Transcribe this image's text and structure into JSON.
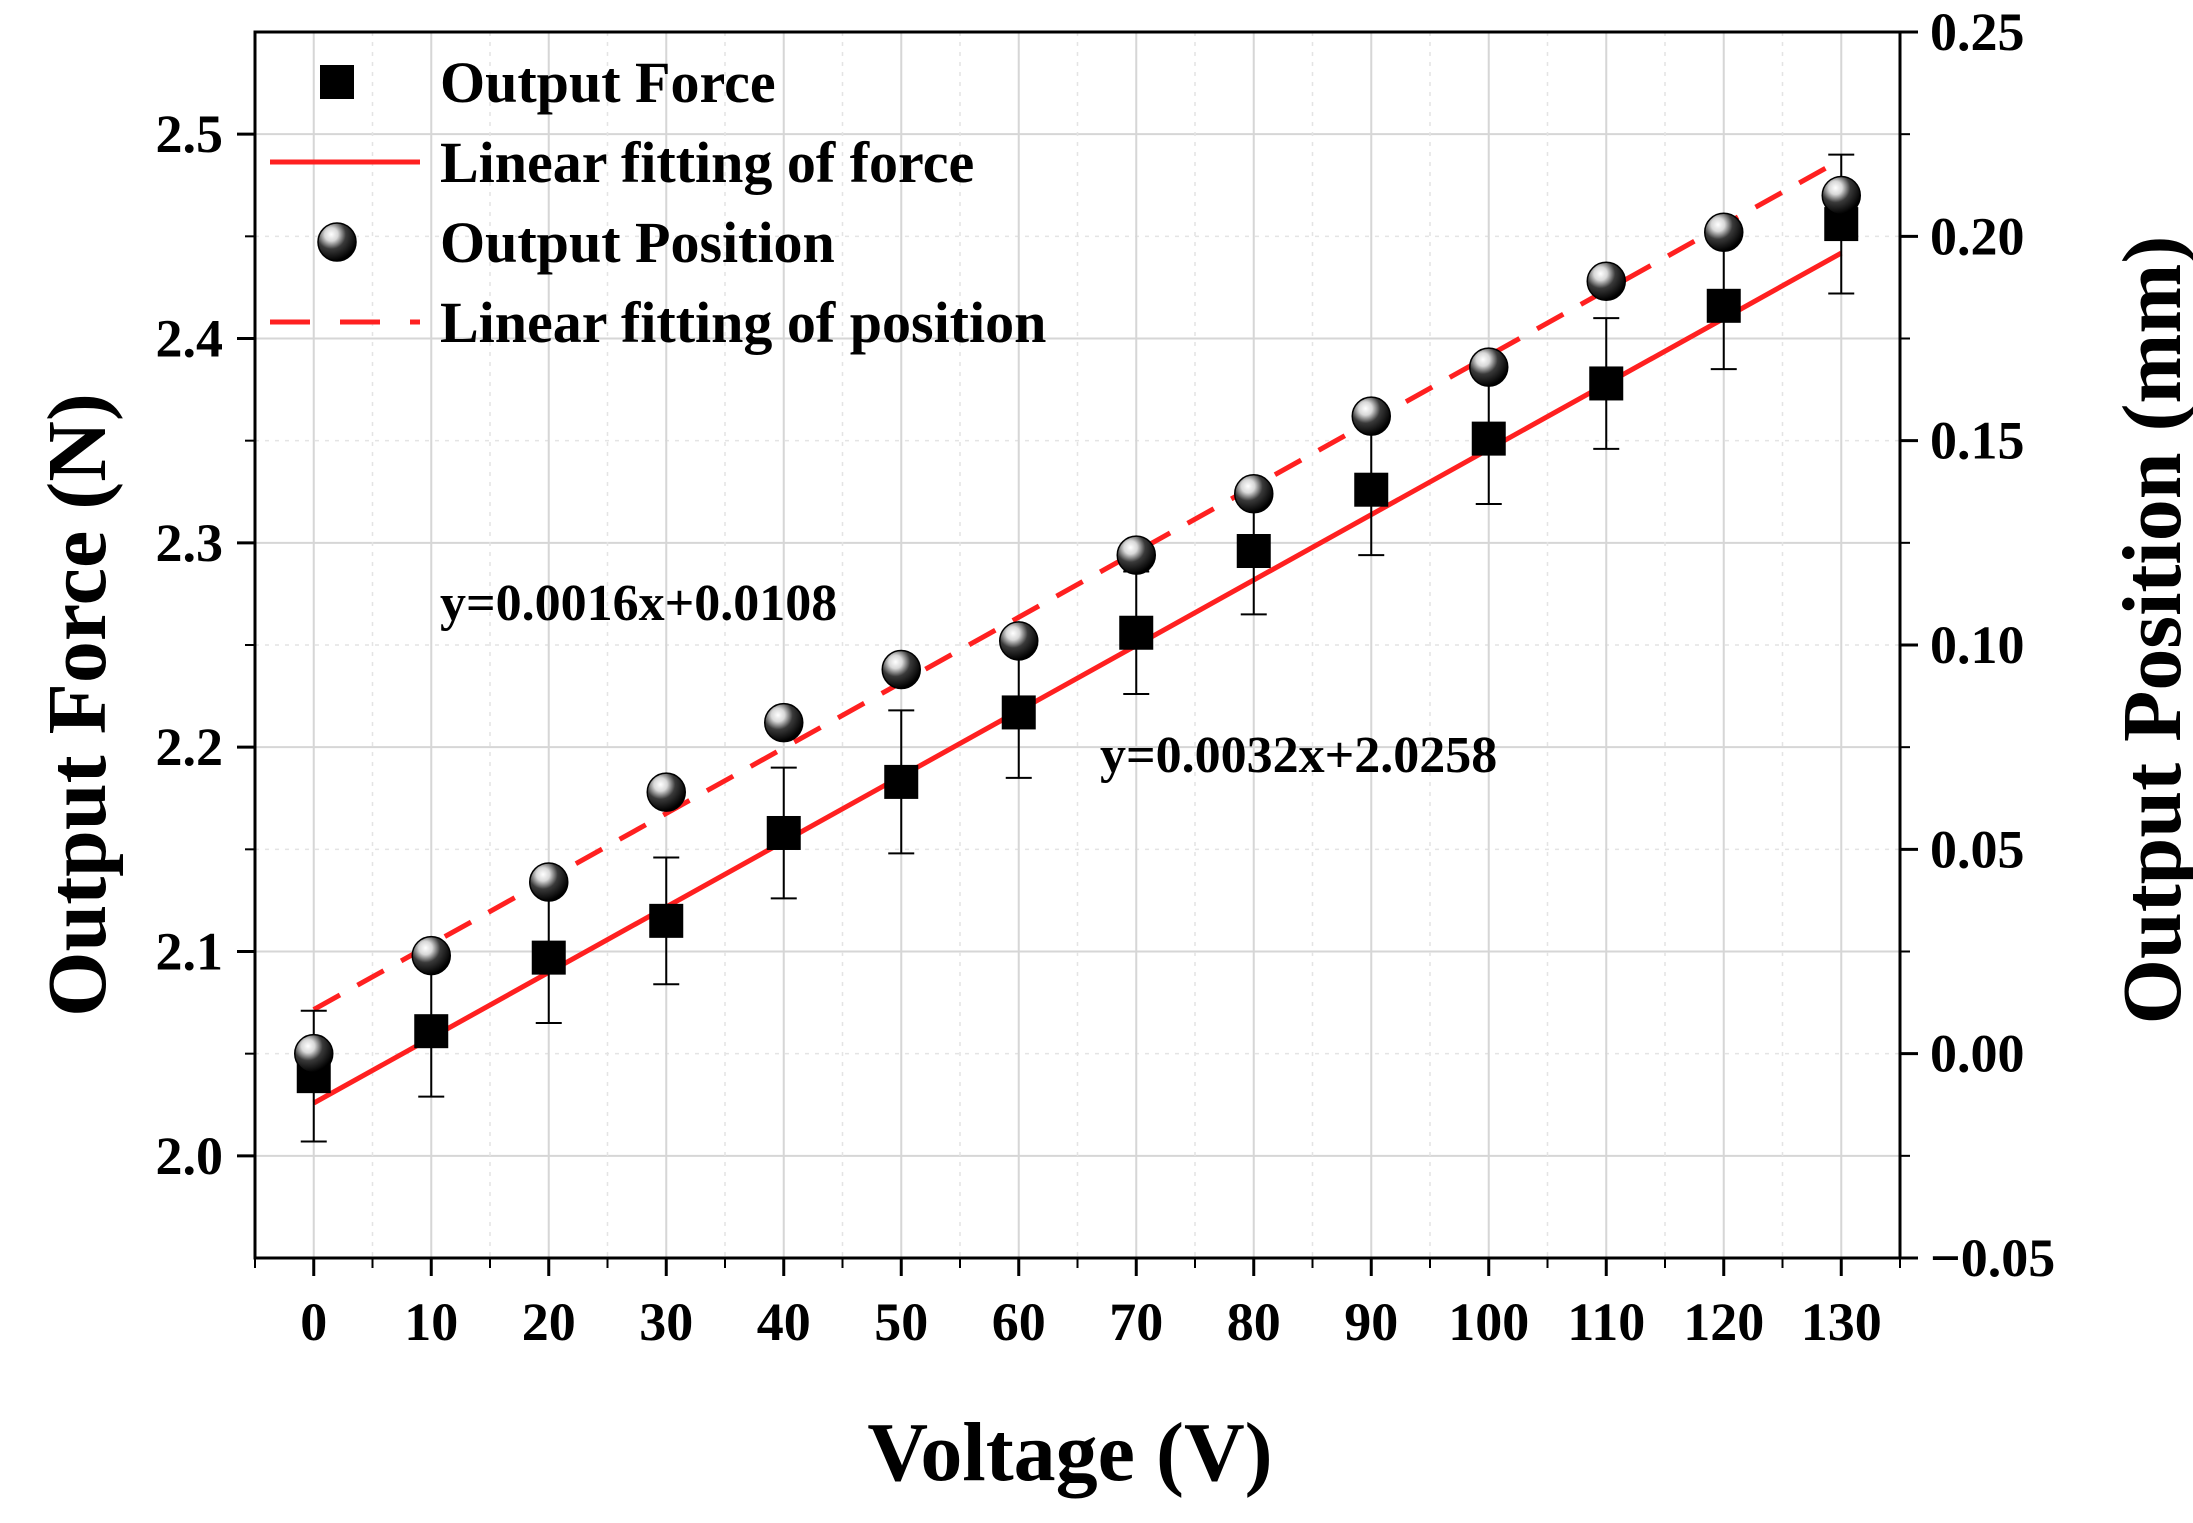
{
  "chart_data": {
    "type": "scatter",
    "title": "",
    "xlabel": "Voltage (V)",
    "ylabel_left": "Output Force (N)",
    "ylabel_right": "Output Position (mm)",
    "x": [
      0,
      10,
      20,
      30,
      40,
      50,
      60,
      70,
      80,
      90,
      100,
      110,
      120,
      130
    ],
    "x_ticks": [
      "0",
      "10",
      "20",
      "30",
      "40",
      "50",
      "60",
      "70",
      "80",
      "90",
      "100",
      "110",
      "120",
      "130"
    ],
    "xlim": [
      -5,
      135
    ],
    "ylim_left": [
      1.95,
      2.55
    ],
    "ylim_right": [
      -0.05,
      0.25
    ],
    "y_ticks_left": [
      "2.0",
      "2.1",
      "2.2",
      "2.3",
      "2.4",
      "2.5"
    ],
    "y_ticks_left_values": [
      2.0,
      2.1,
      2.2,
      2.3,
      2.4,
      2.5
    ],
    "y_ticks_right": [
      "−0.05",
      "0.00",
      "0.05",
      "0.10",
      "0.15",
      "0.20",
      "0.25"
    ],
    "y_ticks_right_values": [
      -0.05,
      0.0,
      0.05,
      0.1,
      0.15,
      0.2,
      0.25
    ],
    "grid": true,
    "legend_position": "top-left",
    "series": [
      {
        "name": "Output Force",
        "marker": "square",
        "axis": "left",
        "color": "#000000",
        "values": [
          2.039,
          2.061,
          2.097,
          2.115,
          2.158,
          2.183,
          2.217,
          2.256,
          2.296,
          2.326,
          2.351,
          2.378,
          2.416,
          2.456
        ],
        "error": [
          0.032,
          0.032,
          0.032,
          0.031,
          0.032,
          0.035,
          0.032,
          0.03,
          0.031,
          0.032,
          0.032,
          0.032,
          0.031,
          0.034
        ]
      },
      {
        "name": "Output Position",
        "marker": "sphere",
        "axis": "right",
        "color": "#000000",
        "values": [
          0.0,
          0.024,
          0.042,
          0.064,
          0.081,
          0.094,
          0.101,
          0.122,
          0.137,
          0.156,
          0.168,
          0.189,
          0.201,
          0.21
        ]
      }
    ],
    "fits": [
      {
        "name": "Linear fitting of force",
        "axis": "left",
        "style": "solid",
        "color": "#ff2020",
        "x_range": [
          0,
          130
        ],
        "y_range": [
          2.0258,
          2.4418
        ]
      },
      {
        "name": "Linear fitting of position",
        "axis": "right",
        "style": "dashed",
        "color": "#ff2020",
        "x_range": [
          0,
          130
        ],
        "y_range": [
          0.0108,
          0.2188
        ]
      }
    ],
    "legend": [
      {
        "label": "Output Force",
        "symbol": "square"
      },
      {
        "label": "Linear fitting of force",
        "symbol": "solid-line"
      },
      {
        "label": "Output Position",
        "symbol": "sphere"
      },
      {
        "label": "Linear fitting of position",
        "symbol": "dashed-line"
      }
    ],
    "annotations": [
      {
        "text": "y=0.0016x+0.0108",
        "near": "position fit, center-left"
      },
      {
        "text": "y=0.0032x+2.0258",
        "near": "force fit, center-right"
      }
    ]
  }
}
